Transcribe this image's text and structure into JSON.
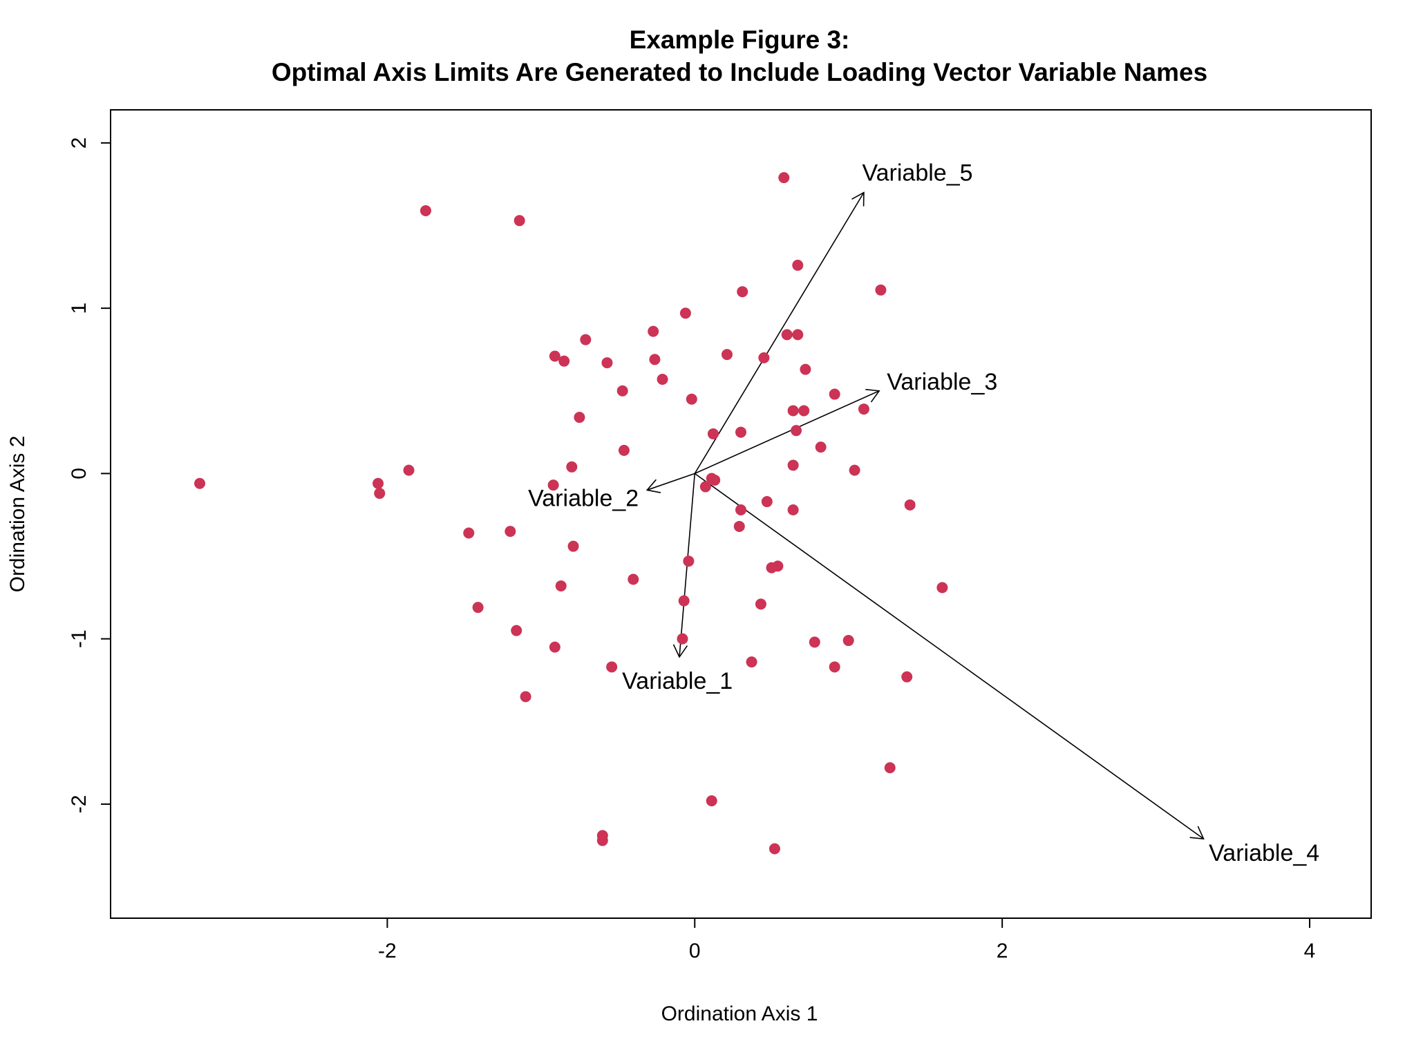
{
  "chart_data": {
    "type": "scatter",
    "title": "Example Figure 3:",
    "subtitle": "Optimal Axis Limits Are Generated to Include Loading Vector Variable Names",
    "xlabel": "Ordination Axis 1",
    "ylabel": "Ordination Axis 2",
    "xlim": [
      -3.8,
      4.4
    ],
    "ylim": [
      -2.69,
      2.2
    ],
    "x_ticks": [
      -2,
      0,
      2,
      4
    ],
    "x_tick_labels": [
      "-2",
      "0",
      "2",
      "4"
    ],
    "y_ticks": [
      -2,
      -1,
      0,
      1,
      2
    ],
    "y_tick_labels": [
      "-2",
      "-1",
      "0",
      "1",
      "2"
    ],
    "grid": false,
    "point_color": "#cc3355",
    "points": [
      {
        "x": 0.58,
        "y": 1.79
      },
      {
        "x": -1.75,
        "y": 1.59
      },
      {
        "x": -1.14,
        "y": 1.53
      },
      {
        "x": 0.67,
        "y": 1.26
      },
      {
        "x": 1.21,
        "y": 1.11
      },
      {
        "x": 0.31,
        "y": 1.1
      },
      {
        "x": -0.06,
        "y": 0.97
      },
      {
        "x": -0.27,
        "y": 0.86
      },
      {
        "x": 0.6,
        "y": 0.84
      },
      {
        "x": 0.67,
        "y": 0.84
      },
      {
        "x": -0.71,
        "y": 0.81
      },
      {
        "x": 0.21,
        "y": 0.72
      },
      {
        "x": -0.91,
        "y": 0.71
      },
      {
        "x": -0.26,
        "y": 0.69
      },
      {
        "x": -0.85,
        "y": 0.68
      },
      {
        "x": -0.57,
        "y": 0.67
      },
      {
        "x": 0.45,
        "y": 0.7
      },
      {
        "x": 0.72,
        "y": 0.63
      },
      {
        "x": -0.21,
        "y": 0.57
      },
      {
        "x": -0.47,
        "y": 0.5
      },
      {
        "x": 0.91,
        "y": 0.48
      },
      {
        "x": -0.02,
        "y": 0.45
      },
      {
        "x": 1.1,
        "y": 0.39
      },
      {
        "x": 0.64,
        "y": 0.38
      },
      {
        "x": 0.71,
        "y": 0.38
      },
      {
        "x": -0.75,
        "y": 0.34
      },
      {
        "x": 0.66,
        "y": 0.26
      },
      {
        "x": 0.12,
        "y": 0.24
      },
      {
        "x": 0.3,
        "y": 0.25
      },
      {
        "x": 0.82,
        "y": 0.16
      },
      {
        "x": -0.46,
        "y": 0.14
      },
      {
        "x": 0.64,
        "y": 0.05
      },
      {
        "x": -1.86,
        "y": 0.02
      },
      {
        "x": -0.8,
        "y": 0.04
      },
      {
        "x": 1.04,
        "y": 0.02
      },
      {
        "x": 0.11,
        "y": -0.03
      },
      {
        "x": 0.13,
        "y": -0.04
      },
      {
        "x": 0.07,
        "y": -0.08
      },
      {
        "x": -3.22,
        "y": -0.06
      },
      {
        "x": -2.06,
        "y": -0.06
      },
      {
        "x": -2.05,
        "y": -0.12
      },
      {
        "x": -0.92,
        "y": -0.07
      },
      {
        "x": 0.47,
        "y": -0.17
      },
      {
        "x": 1.4,
        "y": -0.19
      },
      {
        "x": 0.3,
        "y": -0.22
      },
      {
        "x": 0.64,
        "y": -0.22
      },
      {
        "x": 0.29,
        "y": -0.32
      },
      {
        "x": -1.47,
        "y": -0.36
      },
      {
        "x": -1.2,
        "y": -0.35
      },
      {
        "x": -0.79,
        "y": -0.44
      },
      {
        "x": -0.04,
        "y": -0.53
      },
      {
        "x": 0.5,
        "y": -0.57
      },
      {
        "x": 0.54,
        "y": -0.56
      },
      {
        "x": -0.4,
        "y": -0.64
      },
      {
        "x": -0.87,
        "y": -0.68
      },
      {
        "x": 1.61,
        "y": -0.69
      },
      {
        "x": -0.07,
        "y": -0.77
      },
      {
        "x": 0.43,
        "y": -0.79
      },
      {
        "x": -1.41,
        "y": -0.81
      },
      {
        "x": -1.16,
        "y": -0.95
      },
      {
        "x": -0.08,
        "y": -1.0
      },
      {
        "x": 1.0,
        "y": -1.01
      },
      {
        "x": 0.78,
        "y": -1.02
      },
      {
        "x": -0.91,
        "y": -1.05
      },
      {
        "x": 0.37,
        "y": -1.14
      },
      {
        "x": 0.91,
        "y": -1.17
      },
      {
        "x": -0.54,
        "y": -1.17
      },
      {
        "x": 1.38,
        "y": -1.23
      },
      {
        "x": -1.1,
        "y": -1.35
      },
      {
        "x": 1.27,
        "y": -1.78
      },
      {
        "x": 0.11,
        "y": -1.98
      },
      {
        "x": -0.6,
        "y": -2.19
      },
      {
        "x": -0.6,
        "y": -2.22
      },
      {
        "x": 0.52,
        "y": -2.27
      }
    ],
    "vectors": [
      {
        "name": "Variable_1",
        "x": -0.1,
        "y": -1.11
      },
      {
        "name": "Variable_2",
        "x": -0.31,
        "y": -0.1
      },
      {
        "name": "Variable_3",
        "x": 1.2,
        "y": 0.5
      },
      {
        "name": "Variable_4",
        "x": 3.31,
        "y": -2.21
      },
      {
        "name": "Variable_5",
        "x": 1.1,
        "y": 1.7
      }
    ]
  }
}
